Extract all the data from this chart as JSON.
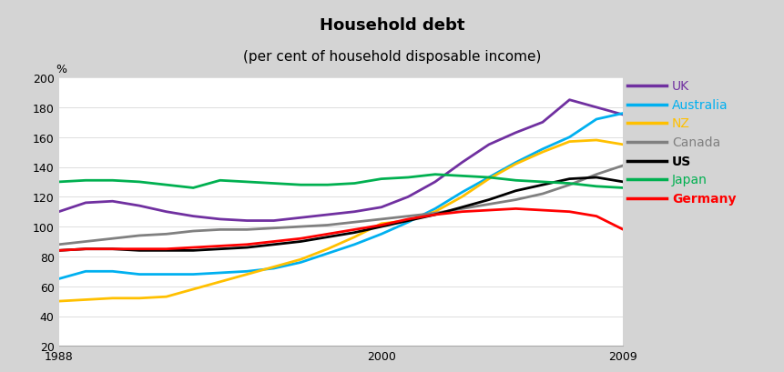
{
  "title_line1": "Household debt",
  "title_line2": "(per cent of household disposable income)",
  "ylabel": "%",
  "xlim": [
    1988,
    2009
  ],
  "ylim": [
    20,
    200
  ],
  "yticks": [
    20,
    40,
    60,
    80,
    100,
    120,
    140,
    160,
    180,
    200
  ],
  "xticks": [
    1988,
    2000,
    2009
  ],
  "background_color": "#d4d4d4",
  "plot_bg": "#ffffff",
  "title_bg": "#cccccc",
  "series": {
    "UK": {
      "color": "#7030a0",
      "years": [
        1988,
        1989,
        1990,
        1991,
        1992,
        1993,
        1994,
        1995,
        1996,
        1997,
        1998,
        1999,
        2000,
        2001,
        2002,
        2003,
        2004,
        2005,
        2006,
        2007,
        2008,
        2009
      ],
      "values": [
        110,
        116,
        117,
        114,
        110,
        107,
        105,
        104,
        104,
        106,
        108,
        110,
        113,
        120,
        130,
        143,
        155,
        163,
        170,
        185,
        180,
        175
      ]
    },
    "Australia": {
      "color": "#00b0f0",
      "years": [
        1988,
        1989,
        1990,
        1991,
        1992,
        1993,
        1994,
        1995,
        1996,
        1997,
        1998,
        1999,
        2000,
        2001,
        2002,
        2003,
        2004,
        2005,
        2006,
        2007,
        2008,
        2009
      ],
      "values": [
        65,
        70,
        70,
        68,
        68,
        68,
        69,
        70,
        72,
        76,
        82,
        88,
        95,
        103,
        112,
        123,
        133,
        143,
        152,
        160,
        172,
        176
      ]
    },
    "NZ": {
      "color": "#ffc000",
      "years": [
        1988,
        1989,
        1990,
        1991,
        1992,
        1993,
        1994,
        1995,
        1996,
        1997,
        1998,
        1999,
        2000,
        2001,
        2002,
        2003,
        2004,
        2005,
        2006,
        2007,
        2008,
        2009
      ],
      "values": [
        50,
        51,
        52,
        52,
        53,
        58,
        63,
        68,
        73,
        78,
        85,
        93,
        102,
        104,
        110,
        120,
        132,
        142,
        150,
        157,
        158,
        155
      ]
    },
    "Canada": {
      "color": "#808080",
      "years": [
        1988,
        1989,
        1990,
        1991,
        1992,
        1993,
        1994,
        1995,
        1996,
        1997,
        1998,
        1999,
        2000,
        2001,
        2002,
        2003,
        2004,
        2005,
        2006,
        2007,
        2008,
        2009
      ],
      "values": [
        88,
        90,
        92,
        94,
        95,
        97,
        98,
        98,
        99,
        100,
        101,
        103,
        105,
        107,
        109,
        112,
        115,
        118,
        122,
        128,
        135,
        141
      ]
    },
    "US": {
      "color": "#000000",
      "years": [
        1988,
        1989,
        1990,
        1991,
        1992,
        1993,
        1994,
        1995,
        1996,
        1997,
        1998,
        1999,
        2000,
        2001,
        2002,
        2003,
        2004,
        2005,
        2006,
        2007,
        2008,
        2009
      ],
      "values": [
        84,
        85,
        85,
        84,
        84,
        84,
        85,
        86,
        88,
        90,
        93,
        96,
        100,
        104,
        108,
        113,
        118,
        124,
        128,
        132,
        133,
        130
      ]
    },
    "Japan": {
      "color": "#00b050",
      "years": [
        1988,
        1989,
        1990,
        1991,
        1992,
        1993,
        1994,
        1995,
        1996,
        1997,
        1998,
        1999,
        2000,
        2001,
        2002,
        2003,
        2004,
        2005,
        2006,
        2007,
        2008,
        2009
      ],
      "values": [
        130,
        131,
        131,
        130,
        128,
        126,
        131,
        130,
        129,
        128,
        128,
        129,
        132,
        133,
        135,
        134,
        133,
        131,
        130,
        129,
        127,
        126
      ]
    },
    "Germany": {
      "color": "#ff0000",
      "years": [
        1988,
        1989,
        1990,
        1991,
        1992,
        1993,
        1994,
        1995,
        1996,
        1997,
        1998,
        1999,
        2000,
        2001,
        2002,
        2003,
        2004,
        2005,
        2006,
        2007,
        2008,
        2009
      ],
      "values": [
        84,
        85,
        85,
        85,
        85,
        86,
        87,
        88,
        90,
        92,
        95,
        98,
        101,
        105,
        108,
        110,
        111,
        112,
        111,
        110,
        107,
        98
      ]
    }
  },
  "legend_order": [
    "UK",
    "Australia",
    "NZ",
    "Canada",
    "US",
    "Japan",
    "Germany"
  ],
  "legend_bold": [
    "US",
    "Germany"
  ],
  "title_fontsize": 13,
  "subtitle_fontsize": 11,
  "legend_fontsize": 10,
  "tick_fontsize": 9
}
